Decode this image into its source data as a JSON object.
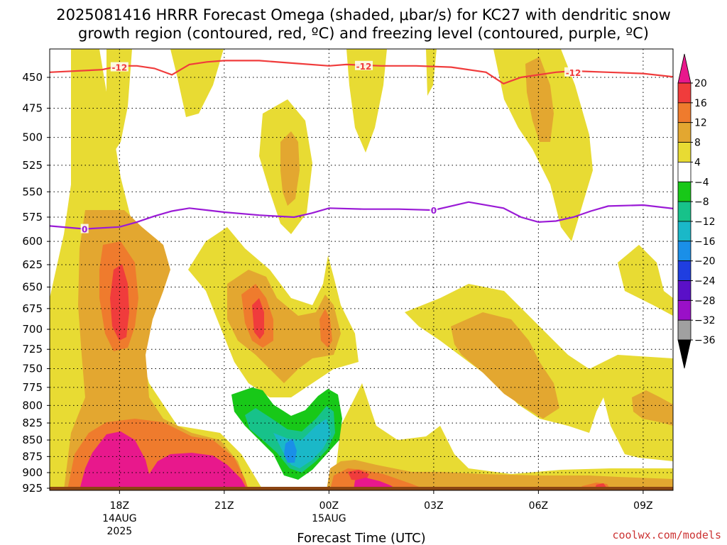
{
  "title_line1": "2025081416 HRRR Forecast Omega (shaded, μbar/s) for KC27 with dendritic snow",
  "title_line2": "growth region (contoured, red, ºC) and freezing level (contoured, purple, ºC)",
  "credit": "coolwx.com/models",
  "chart_data": {
    "type": "heatmap",
    "title": "2025081416 HRRR Forecast Omega (shaded, μbar/s) for KC27 with dendritic snow growth region (contoured, red, ºC) and freezing level (contoured, purple, ºC)",
    "xlabel": "Forecast Time (UTC)",
    "ylabel": "",
    "x_range_hours_utc": [
      16,
      34
    ],
    "y_range_mb": [
      930,
      420
    ],
    "y_ticks": [
      450,
      475,
      500,
      525,
      550,
      575,
      600,
      625,
      650,
      675,
      700,
      725,
      750,
      775,
      800,
      825,
      850,
      875,
      900,
      925
    ],
    "x_ticks": [
      {
        "hour": 18,
        "label": "18Z",
        "sub1": "14AUG",
        "sub2": "2025"
      },
      {
        "hour": 21,
        "label": "21Z",
        "sub1": "",
        "sub2": ""
      },
      {
        "hour": 24,
        "label": "00Z",
        "sub1": "15AUG",
        "sub2": ""
      },
      {
        "hour": 27,
        "label": "03Z",
        "sub1": "",
        "sub2": ""
      },
      {
        "hour": 30,
        "label": "06Z",
        "sub1": "",
        "sub2": ""
      },
      {
        "hour": 33,
        "label": "09Z",
        "sub1": "",
        "sub2": ""
      }
    ],
    "grid": true,
    "colorbar": {
      "labels": [
        "20",
        "16",
        "12",
        "8",
        "4",
        "−4",
        "−8",
        "−12",
        "−16",
        "−20",
        "−24",
        "−28",
        "−32",
        "−36"
      ],
      "colors": [
        "#e8188c",
        "#f03c3c",
        "#ef7b2d",
        "#e3a730",
        "#e8db33",
        "#ffffff",
        "#18c818",
        "#17c28a",
        "#1ab8c8",
        "#1a8fe8",
        "#1f3ee0",
        "#5a10c8",
        "#9a10c8",
        "#a0a0a0",
        "#000000"
      ]
    },
    "omega_regions": [
      {
        "level": "+4",
        "shape": "broad yellow areas covering most of 575-925 mb, plus columns near 17Z, 22Z-23Z, 25Z, 29Z-32Z aloft"
      },
      {
        "level": "+8",
        "shape": "orange bands near 17-19Z 575-925 mb, 22-25Z 650-760 mb, 28-33Z 680-820 mb"
      },
      {
        "level": "+12",
        "shape": "orange cores near 18Z 625-750 mb and 18-21Z 800-900 mb"
      },
      {
        "level": "+16",
        "shape": "red cores near 18Z 675-725 mb and 22Z 675-725 mb"
      },
      {
        "level": ">+20",
        "shape": "magenta core near 17-21Z 835-925 mb"
      },
      {
        "level": "-4",
        "shape": "green region near 22-24Z 790-920 mb"
      },
      {
        "level": "-8 to -16",
        "shape": "teal/blue core near 23Z 820-890 mb"
      }
    ],
    "series": [
      {
        "name": "-12",
        "color": "#f03c3c",
        "x": [
          16.0,
          17.5,
          18.0,
          18.5,
          19.0,
          19.5,
          20.0,
          20.5,
          21.0,
          22.0,
          23.0,
          24.0,
          24.5,
          25.5,
          26.5,
          27.5,
          28.5,
          29.0,
          29.5,
          30.0,
          30.5,
          31.0,
          32.0,
          33.0,
          34.0
        ],
        "y": [
          446,
          444,
          441,
          441,
          443,
          448,
          440,
          438,
          437,
          437,
          439,
          441,
          440,
          441,
          441,
          442,
          446,
          455,
          450,
          448,
          446,
          445,
          446,
          447,
          450
        ]
      },
      {
        "name": "0",
        "color": "#9a1ad6",
        "x": [
          16.0,
          17.0,
          18.0,
          18.5,
          19.0,
          19.5,
          20.0,
          20.5,
          21.0,
          22.0,
          23.0,
          23.5,
          24.0,
          25.0,
          26.0,
          27.0,
          27.5,
          28.0,
          29.0,
          29.5,
          30.0,
          30.5,
          31.0,
          31.5,
          32.0,
          33.0,
          34.0
        ],
        "y": [
          584,
          587,
          585,
          580,
          574,
          569,
          566,
          568,
          570,
          573,
          575,
          571,
          566,
          567,
          567,
          568,
          564,
          560,
          566,
          575,
          580,
          579,
          575,
          569,
          564,
          563,
          567
        ]
      }
    ],
    "contour_labels": [
      {
        "text": "-12",
        "hour": 18.0,
        "mb": 442,
        "color": "#f03c3c"
      },
      {
        "text": "-12",
        "hour": 25.0,
        "mb": 441,
        "color": "#f03c3c"
      },
      {
        "text": "-12",
        "hour": 31.0,
        "mb": 446,
        "color": "#f03c3c"
      },
      {
        "text": "0",
        "hour": 17.0,
        "mb": 587,
        "color": "#9a1ad6"
      },
      {
        "text": "0",
        "hour": 27.0,
        "mb": 568,
        "color": "#9a1ad6"
      }
    ]
  }
}
